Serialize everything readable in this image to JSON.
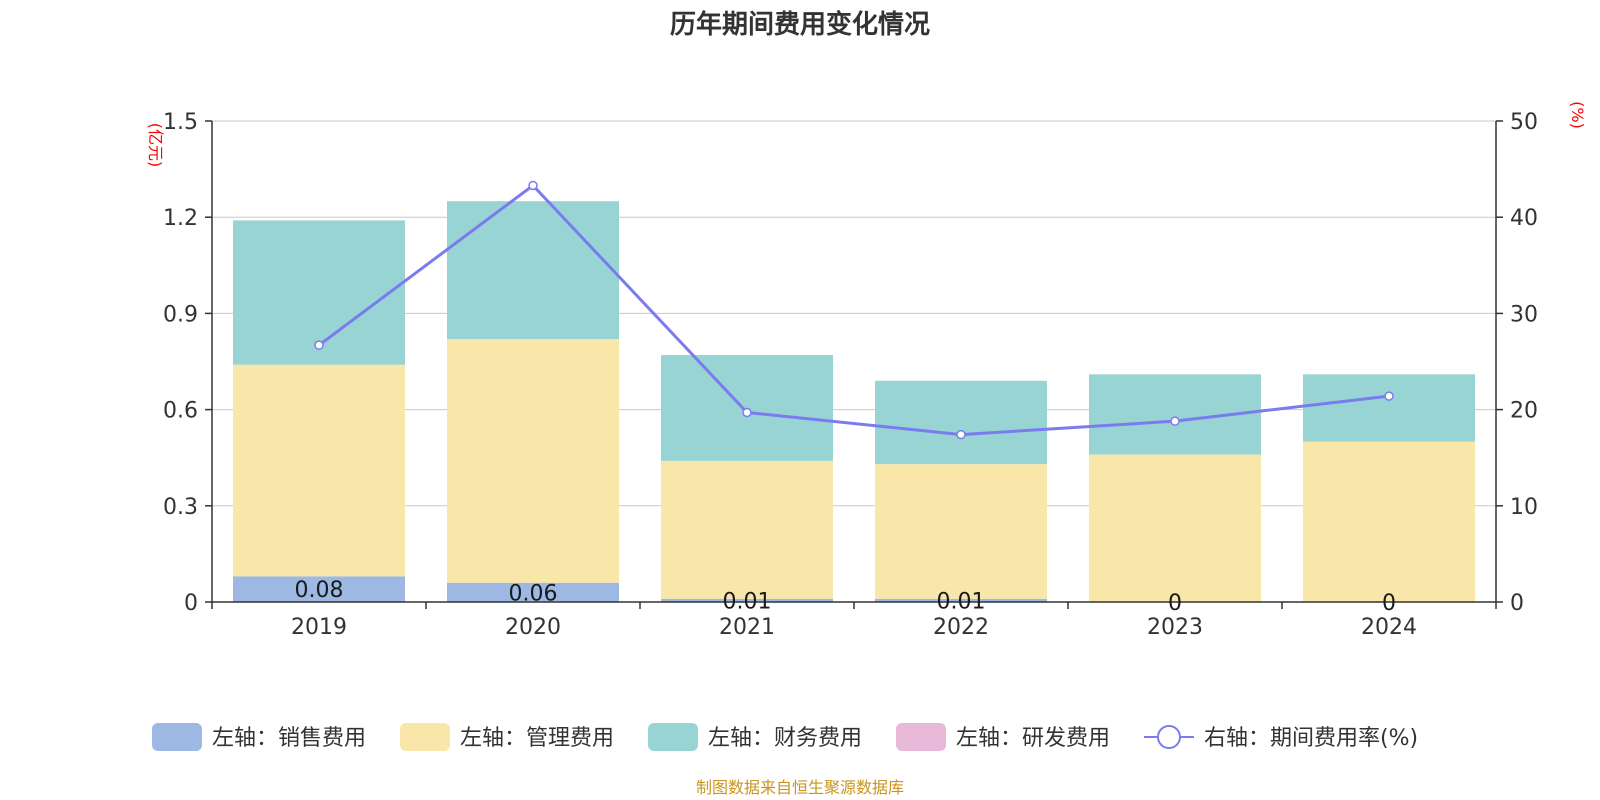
{
  "chart_data": {
    "type": "bar",
    "stacked": true,
    "title": "历年期间费用变化情况",
    "categories": [
      "2019",
      "2020",
      "2021",
      "2022",
      "2023",
      "2024"
    ],
    "y_left": {
      "unit": "(亿元)",
      "ylim": [
        0,
        1.5
      ],
      "ticks": [
        "0",
        "0.3",
        "0.6",
        "0.9",
        "1.2",
        "1.5"
      ]
    },
    "y_right": {
      "unit": "(%)",
      "ylim": [
        0,
        50
      ],
      "ticks": [
        "0",
        "10",
        "20",
        "30",
        "40",
        "50"
      ]
    },
    "grid": true,
    "legend_position": "bottom",
    "series": [
      {
        "name": "左轴：销售费用",
        "type": "bar",
        "axis": "left",
        "color": "#9db8e2",
        "values": [
          0.08,
          0.06,
          0.01,
          0.01,
          0,
          0
        ],
        "labels": [
          "0.08",
          "0.06",
          "0.01",
          "0.01",
          "0",
          "0"
        ]
      },
      {
        "name": "左轴：管理费用",
        "type": "bar",
        "axis": "left",
        "color": "#f8e7a8",
        "values": [
          0.66,
          0.76,
          0.43,
          0.42,
          0.46,
          0.5
        ]
      },
      {
        "name": "左轴：财务费用",
        "type": "bar",
        "axis": "left",
        "color": "#98d4d4",
        "values": [
          0.45,
          0.43,
          0.33,
          0.26,
          0.25,
          0.21
        ]
      },
      {
        "name": "左轴：研发费用",
        "type": "bar",
        "axis": "left",
        "color": "#e8b8d8",
        "values": [
          0,
          0,
          0,
          0,
          0,
          0
        ]
      },
      {
        "name": "右轴：期间费用率(%)",
        "type": "line",
        "axis": "right",
        "color": "#7b7bf0",
        "values": [
          26.7,
          43.3,
          19.7,
          17.4,
          18.8,
          21.4
        ]
      }
    ]
  },
  "source": "制图数据来自恒生聚源数据库"
}
